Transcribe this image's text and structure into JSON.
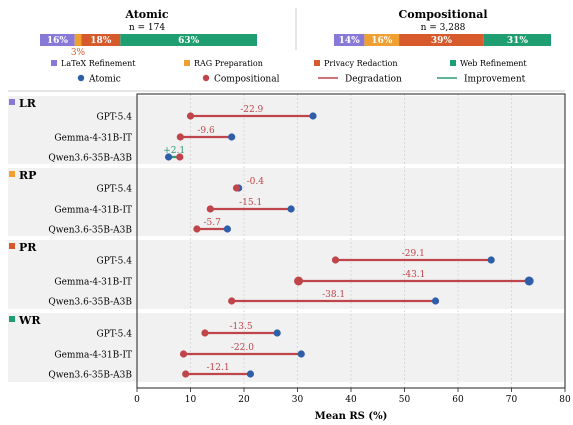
{
  "colors": {
    "latex": "#8878d8",
    "rag": "#f0a030",
    "privacy": "#d65a2c",
    "web": "#1f9e72",
    "atomic": "#2f5ea8",
    "compositional": "#c0454a",
    "degradation": "#c0454a",
    "improvement": "#2a9a7a",
    "panel_bg": "#f1f1f1"
  },
  "header": {
    "atomic": {
      "title": "Atomic",
      "count": "n = 174",
      "segments": [
        {
          "key": "latex",
          "value": 16,
          "label": "16%"
        },
        {
          "key": "rag",
          "value": 3,
          "label": "3%"
        },
        {
          "key": "privacy",
          "value": 18,
          "label": "18%"
        },
        {
          "key": "web",
          "value": 63,
          "label": "63%"
        }
      ]
    },
    "compositional": {
      "title": "Compositional",
      "count": "n = 3,288",
      "segments": [
        {
          "key": "latex",
          "value": 14,
          "label": "14%"
        },
        {
          "key": "rag",
          "value": 16,
          "label": "16%"
        },
        {
          "key": "privacy",
          "value": 39,
          "label": "39%"
        },
        {
          "key": "web",
          "value": 31,
          "label": "31%"
        }
      ]
    }
  },
  "legend": {
    "categories": [
      {
        "key": "latex",
        "label": "LaTeX Refinement"
      },
      {
        "key": "rag",
        "label": "RAG Preparation"
      },
      {
        "key": "privacy",
        "label": "Privacy Redaction"
      },
      {
        "key": "web",
        "label": "Web Refinement"
      }
    ],
    "atomic": "Atomic",
    "compositional": "Compositional",
    "degradation": "Degradation",
    "improvement": "Improvement"
  },
  "chart_data": {
    "type": "dumbbell",
    "xlabel": "Mean RS (%)",
    "xlim": [
      0,
      80
    ],
    "xticks": [
      0,
      10,
      20,
      30,
      40,
      50,
      60,
      70,
      80
    ],
    "grid": true,
    "groups": [
      {
        "key": "latex",
        "label": "LR",
        "rows": [
          {
            "model": "GPT-5.4",
            "atomic": 32.9,
            "compositional": 10.0,
            "delta": "-22.9"
          },
          {
            "model": "Gemma-4-31B-IT",
            "atomic": 17.7,
            "compositional": 8.1,
            "delta": "-9.6"
          },
          {
            "model": "Qwen3.6-35B-A3B",
            "atomic": 5.9,
            "compositional": 8.0,
            "delta": "+2.1"
          }
        ]
      },
      {
        "key": "rag",
        "label": "RP",
        "rows": [
          {
            "model": "GPT-5.4",
            "atomic": 19.0,
            "compositional": 18.6,
            "delta": "-0.4"
          },
          {
            "model": "Gemma-4-31B-IT",
            "atomic": 28.8,
            "compositional": 13.7,
            "delta": "-15.1"
          },
          {
            "model": "Qwen3.6-35B-A3B",
            "atomic": 16.9,
            "compositional": 11.2,
            "delta": "-5.7"
          }
        ]
      },
      {
        "key": "privacy",
        "label": "PR",
        "rows": [
          {
            "model": "GPT-5.4",
            "atomic": 66.2,
            "compositional": 37.1,
            "delta": "-29.1"
          },
          {
            "model": "Gemma-4-31B-IT",
            "atomic": 73.3,
            "compositional": 30.2,
            "delta": "-43.1"
          },
          {
            "model": "Qwen3.6-35B-A3B",
            "atomic": 55.8,
            "compositional": 17.7,
            "delta": "-38.1"
          }
        ]
      },
      {
        "key": "web",
        "label": "WR",
        "rows": [
          {
            "model": "GPT-5.4",
            "atomic": 26.2,
            "compositional": 12.7,
            "delta": "-13.5"
          },
          {
            "model": "Gemma-4-31B-IT",
            "atomic": 30.7,
            "compositional": 8.7,
            "delta": "-22.0"
          },
          {
            "model": "Qwen3.6-35B-A3B",
            "atomic": 21.2,
            "compositional": 9.1,
            "delta": "-12.1"
          }
        ]
      }
    ]
  }
}
